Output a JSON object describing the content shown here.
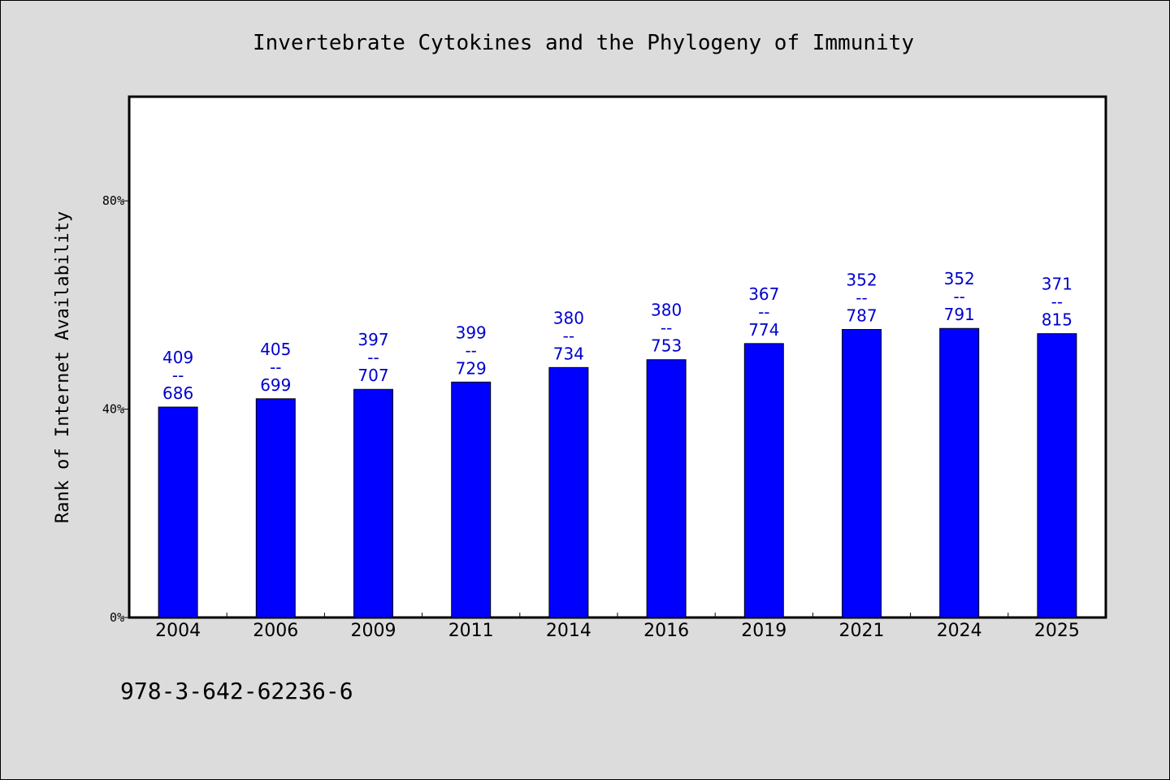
{
  "chart_data": {
    "type": "bar",
    "title": "Invertebrate Cytokines and the Phylogeny of Immunity",
    "ylabel": "Rank of Internet Availability",
    "xlabel": "",
    "ylim": [
      0,
      100
    ],
    "yticks": [
      0,
      40,
      80
    ],
    "ytick_labels": [
      "0%",
      "40%",
      "80%"
    ],
    "categories": [
      "2004",
      "2006",
      "2009",
      "2011",
      "2014",
      "2016",
      "2019",
      "2021",
      "2024",
      "2025"
    ],
    "values": [
      40.4,
      42.0,
      43.8,
      45.2,
      48.0,
      49.5,
      52.6,
      55.3,
      55.5,
      54.5
    ],
    "data_labels": [
      [
        "409",
        "--",
        "686"
      ],
      [
        "405",
        "--",
        "699"
      ],
      [
        "397",
        "--",
        "707"
      ],
      [
        "399",
        "--",
        "729"
      ],
      [
        "380",
        "--",
        "734"
      ],
      [
        "380",
        "--",
        "753"
      ],
      [
        "367",
        "--",
        "774"
      ],
      [
        "352",
        "--",
        "787"
      ],
      [
        "352",
        "--",
        "791"
      ],
      [
        "371",
        "--",
        "815"
      ]
    ],
    "bar_color": "#0000ff",
    "label_color": "#0000cd",
    "grid": false,
    "legend": "none"
  },
  "footer_text": "978-3-642-62236-6"
}
